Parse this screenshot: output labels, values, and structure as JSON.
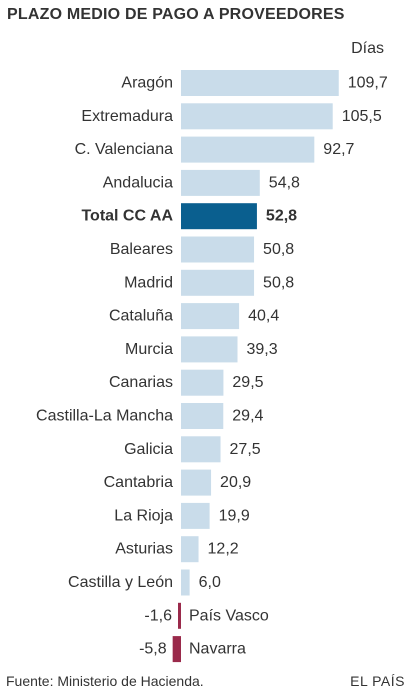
{
  "header": {
    "title": "PLAZO MEDIO DE PAGO A PROVEEDORES",
    "unit": "Días"
  },
  "colors": {
    "bar": "#c9dcea",
    "highlight": "#0a5f8f",
    "negative": "#9a2a4b",
    "text": "#333333"
  },
  "chart_data": {
    "type": "bar",
    "orientation": "horizontal",
    "title": "PLAZO MEDIO DE PAGO A PROVEEDORES",
    "ylabel": "Días",
    "categories": [
      "Aragón",
      "Extremadura",
      "C. Valenciana",
      "Andalucia",
      "Total CC AA",
      "Baleares",
      "Madrid",
      "Cataluña",
      "Murcia",
      "Canarias",
      "Castilla-La Mancha",
      "Galicia",
      "Cantabria",
      "La Rioja",
      "Asturias",
      "Castilla y León",
      "País Vasco",
      "Navarra"
    ],
    "labels": [
      "109,7",
      "105,5",
      "92,7",
      "54,8",
      "52,8",
      "50,8",
      "50,8",
      "40,4",
      "39,3",
      "29,5",
      "29,4",
      "27,5",
      "20,9",
      "19,9",
      "12,2",
      "6,0",
      "-1,6",
      "-5,8"
    ],
    "values": [
      109.7,
      105.5,
      92.7,
      54.8,
      52.8,
      50.8,
      50.8,
      40.4,
      39.3,
      29.5,
      29.4,
      27.5,
      20.9,
      19.9,
      12.2,
      6.0,
      -1.6,
      -5.8
    ],
    "highlight_category": "Total CC AA",
    "xlim": [
      -5.8,
      109.7
    ],
    "grid": false
  },
  "footer": {
    "source": "Fuente: Ministerio de Hacienda.",
    "brand": "EL PAÍS"
  }
}
